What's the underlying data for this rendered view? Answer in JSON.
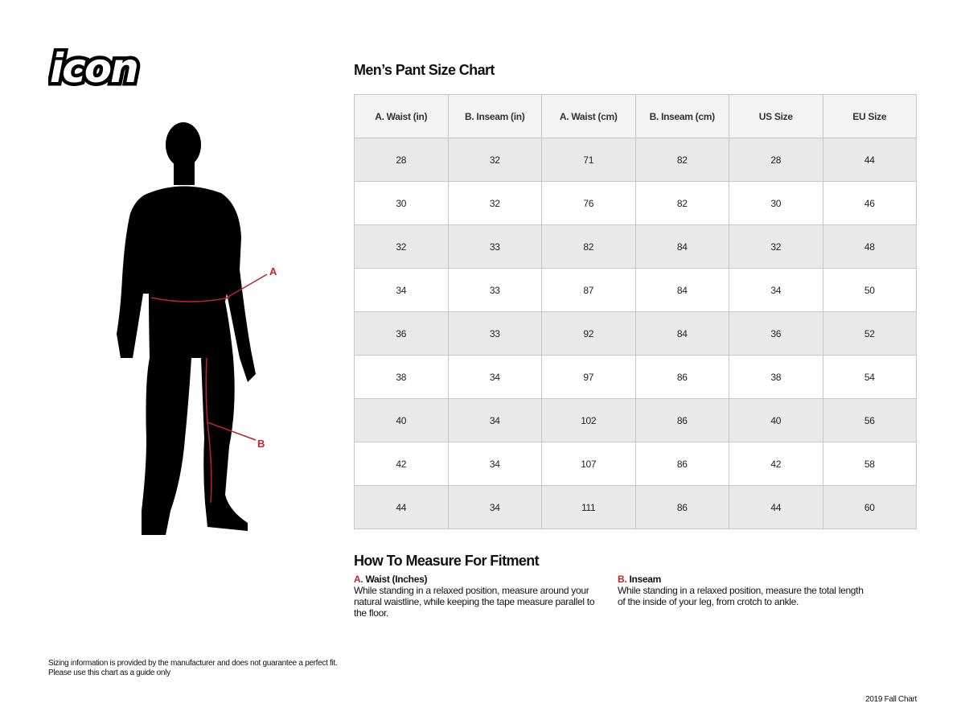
{
  "brand": {
    "logo_text": "icon"
  },
  "title": "Men’s Pant Size Chart",
  "table": {
    "headers": [
      "A. Waist (in)",
      "B. Inseam (in)",
      "A. Waist (cm)",
      "B. Inseam (cm)",
      "US Size",
      "EU Size"
    ],
    "rows": [
      [
        "28",
        "32",
        "71",
        "82",
        "28",
        "44"
      ],
      [
        "30",
        "32",
        "76",
        "82",
        "30",
        "46"
      ],
      [
        "32",
        "33",
        "82",
        "84",
        "32",
        "48"
      ],
      [
        "34",
        "33",
        "87",
        "84",
        "34",
        "50"
      ],
      [
        "36",
        "33",
        "92",
        "84",
        "36",
        "52"
      ],
      [
        "38",
        "34",
        "97",
        "86",
        "38",
        "54"
      ],
      [
        "40",
        "34",
        "102",
        "86",
        "40",
        "56"
      ],
      [
        "42",
        "34",
        "107",
        "86",
        "42",
        "58"
      ],
      [
        "44",
        "34",
        "111",
        "86",
        "44",
        "60"
      ]
    ]
  },
  "figure": {
    "label_a": "A",
    "label_b": "B",
    "accent_color": "#c0232d"
  },
  "howto": {
    "title": "How To Measure For Fitment",
    "waist": {
      "letter": "A.",
      "heading": "Waist (Inches)",
      "text": "While standing in a relaxed position, measure around your natural waistline, while keeping the tape measure parallel to the floor."
    },
    "inseam": {
      "letter": "B.",
      "heading": "Inseam",
      "text": "While standing in a relaxed position, measure the total length of the inside of your leg, from crotch to ankle."
    }
  },
  "disclaimer": {
    "line1": "Sizing information is provided by the manufacturer and does not guarantee a perfect fit.",
    "line2": "Please use this chart as a guide only"
  },
  "footer": "2019 Fall Chart"
}
